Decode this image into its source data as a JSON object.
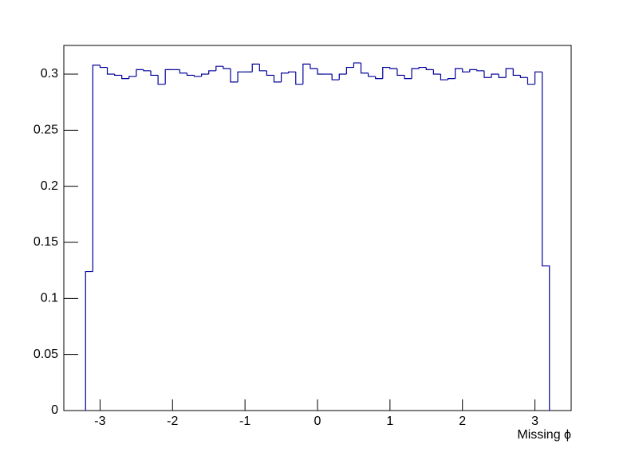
{
  "chart_data": {
    "type": "histogram",
    "xlabel": "Missing ϕ",
    "bins": [
      -3.2,
      -3.1,
      -3.0,
      -2.9,
      -2.8,
      -2.7,
      -2.6,
      -2.5,
      -2.4,
      -2.3,
      -2.2,
      -2.1,
      -2.0,
      -1.9,
      -1.8,
      -1.7,
      -1.6,
      -1.5,
      -1.4,
      -1.3,
      -1.2,
      -1.1,
      -1.0,
      -0.9,
      -0.8,
      -0.7,
      -0.6,
      -0.5,
      -0.4,
      -0.3,
      -0.2,
      -0.1,
      0.0,
      0.1,
      0.2,
      0.3,
      0.4,
      0.5,
      0.6,
      0.7,
      0.8,
      0.9,
      1.0,
      1.1,
      1.2,
      1.3,
      1.4,
      1.5,
      1.6,
      1.7,
      1.8,
      1.9,
      2.0,
      2.1,
      2.2,
      2.3,
      2.4,
      2.5,
      2.6,
      2.7,
      2.8,
      2.9,
      3.0,
      3.1,
      3.2
    ],
    "values": [
      0.124,
      0.308,
      0.306,
      0.3,
      0.299,
      0.296,
      0.298,
      0.304,
      0.303,
      0.299,
      0.291,
      0.304,
      0.304,
      0.301,
      0.299,
      0.298,
      0.3,
      0.303,
      0.307,
      0.305,
      0.293,
      0.302,
      0.302,
      0.309,
      0.303,
      0.299,
      0.293,
      0.301,
      0.302,
      0.291,
      0.309,
      0.305,
      0.3,
      0.3,
      0.295,
      0.3,
      0.306,
      0.31,
      0.301,
      0.298,
      0.296,
      0.306,
      0.305,
      0.299,
      0.296,
      0.305,
      0.306,
      0.304,
      0.3,
      0.295,
      0.296,
      0.305,
      0.302,
      0.304,
      0.303,
      0.297,
      0.3,
      0.297,
      0.305,
      0.299,
      0.297,
      0.291,
      0.302,
      0.129
    ],
    "color": "#000099",
    "xlim": [
      -3.5,
      3.5
    ],
    "xticks": [
      -3,
      -2,
      -1,
      0,
      1,
      2,
      3
    ],
    "ylim": [
      0,
      0.3256
    ],
    "yticks": [
      0,
      0.05,
      0.1,
      0.15,
      0.2,
      0.25,
      0.3
    ]
  }
}
